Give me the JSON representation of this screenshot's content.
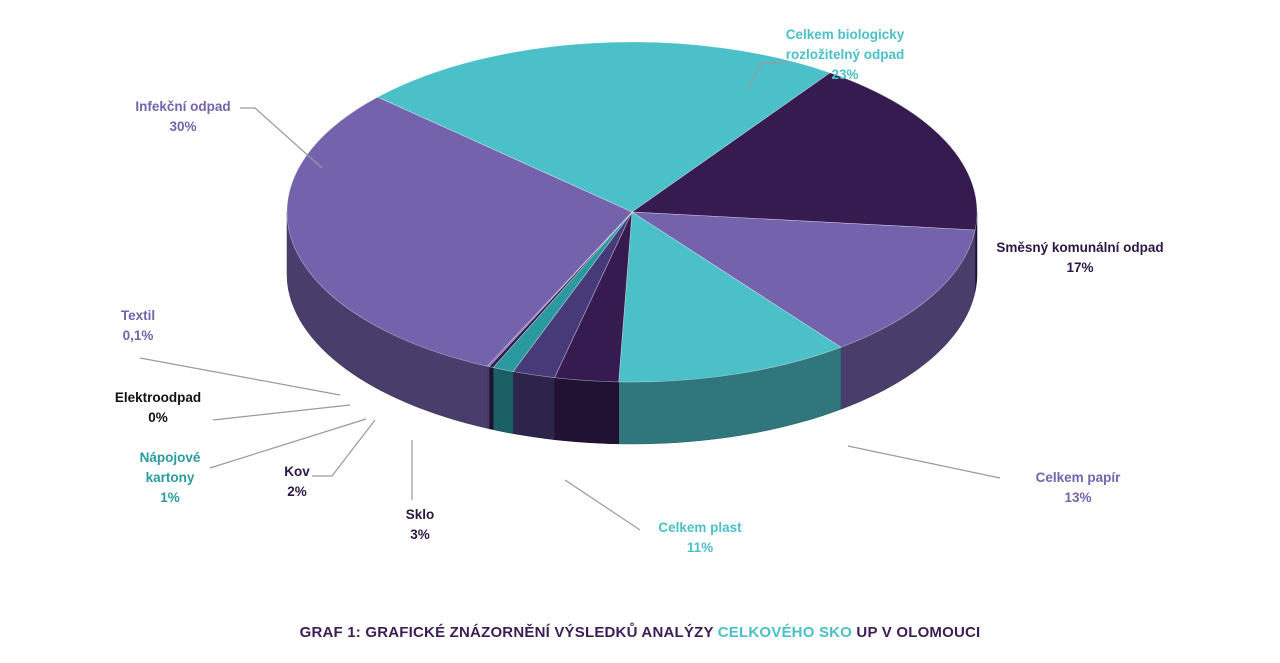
{
  "chart_data": {
    "type": "pie",
    "style": "3d-exploded-perspective",
    "start_angle_deg": -137.5,
    "slices": [
      {
        "label": "Celkem biologicky rozložitelný odpad",
        "label_lines": [
          "Celkem biologicky",
          "rozložitelný odpad"
        ],
        "percent_text": "23%",
        "value": 23,
        "color": "#4cc0c8",
        "label_color": "#4cc0c8"
      },
      {
        "label": "Směsný komunální odpad",
        "label_lines": [
          "Směsný komunální odpad"
        ],
        "percent_text": "17%",
        "value": 17,
        "color": "#351b50",
        "label_color": "#2d1745"
      },
      {
        "label": "Celkem papír",
        "label_lines": [
          "Celkem papír"
        ],
        "percent_text": "13%",
        "value": 13,
        "color": "#7463ac",
        "label_color": "#7463ac"
      },
      {
        "label": "Celkem plast",
        "label_lines": [
          "Celkem plast"
        ],
        "percent_text": "11%",
        "value": 11,
        "color": "#4cc0c8",
        "label_color": "#4cc0c8"
      },
      {
        "label": "Sklo",
        "label_lines": [
          "Sklo"
        ],
        "percent_text": "3%",
        "value": 3,
        "color": "#351b50",
        "label_color": "#2d1745"
      },
      {
        "label": "Kov",
        "label_lines": [
          "Kov"
        ],
        "percent_text": "2%",
        "value": 2,
        "color": "#473a78",
        "label_color": "#2d1745"
      },
      {
        "label": "Nápojové kartony",
        "label_lines": [
          "Nápojové",
          "kartony"
        ],
        "percent_text": "1%",
        "value": 1,
        "color": "#2a9aa0",
        "label_color": "#2a9aa0"
      },
      {
        "label": "Elektroodpad",
        "label_lines": [
          "Elektroodpad"
        ],
        "percent_text": "0%",
        "value": 0.2,
        "color": "#351b50",
        "label_color": "#111111"
      },
      {
        "label": "Textil",
        "label_lines": [
          "Textil"
        ],
        "percent_text": "0,1%",
        "value": 0.1,
        "color": "#7463ac",
        "label_color": "#7463ac"
      },
      {
        "label": "Infekční odpad",
        "label_lines": [
          "Infekční odpad"
        ],
        "percent_text": "30%",
        "value": 30,
        "color": "#7463ac",
        "label_color": "#7463ac"
      }
    ]
  },
  "caption": {
    "prefix_big": "G",
    "prefix_small": "RAF",
    "main": " 1: GRAFICKÉ ZNÁZORNĚNÍ VÝSLEDKŮ ANALÝZY ",
    "accent": "CELKOVÉHO SKO",
    "suffix": " UP V OLOMOUCI"
  }
}
